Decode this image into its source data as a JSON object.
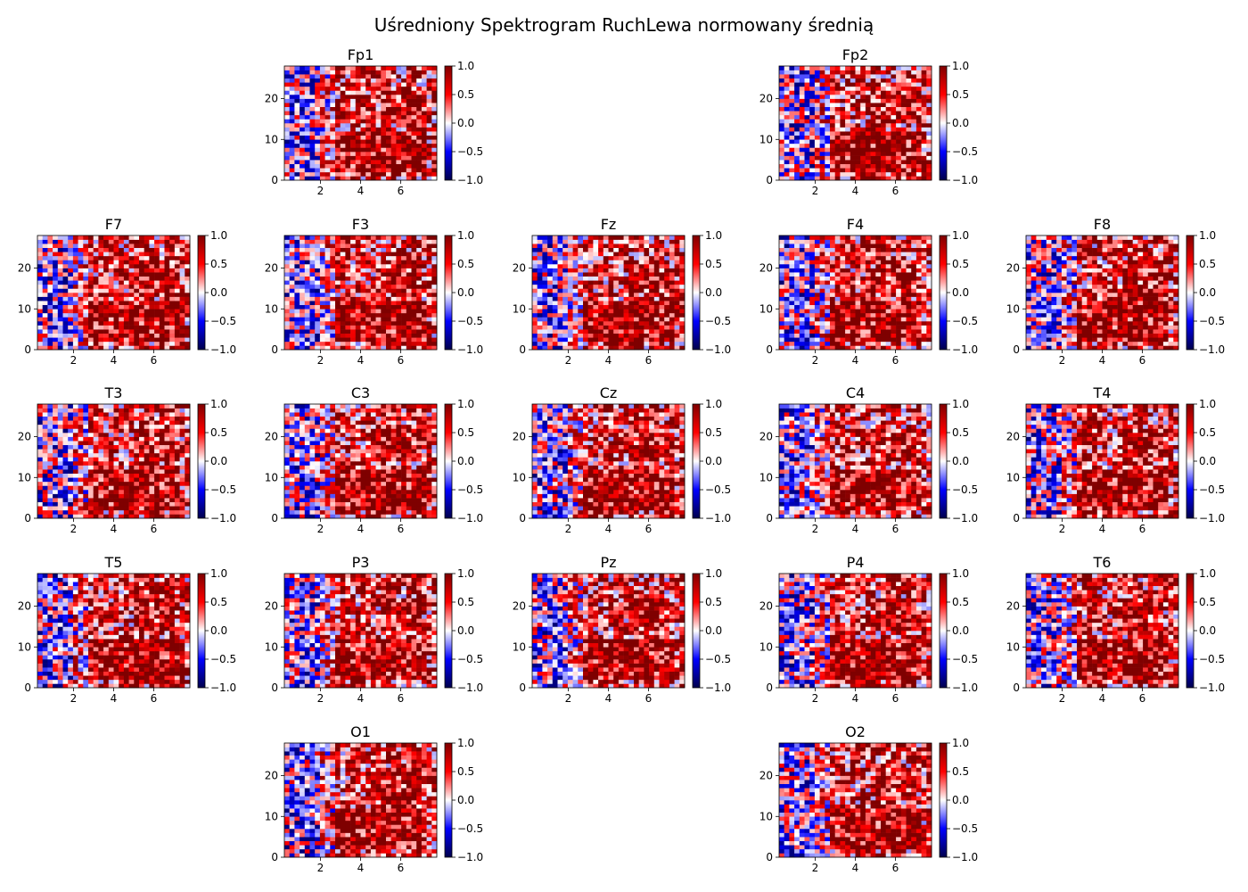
{
  "figure": {
    "title": "Uśredniony Spektrogram RuchLewa normowany średnią"
  },
  "colors": {
    "cmap": "seismic",
    "low": "#00004c",
    "mid": "#ffffff",
    "high": "#7f0000"
  },
  "chart_data": {
    "type": "heatmap",
    "title": "Uśredniony Spektrogram RuchLewa normowany średnią",
    "x_ticks": [
      2,
      4,
      6
    ],
    "y_ticks": [
      0,
      10,
      20
    ],
    "xlim": [
      0.2,
      7.8
    ],
    "ylim": [
      0,
      28
    ],
    "color_range": [
      -1.0,
      1.0
    ],
    "colorbar_ticks": [
      "1.0",
      "0.5",
      "0.0",
      "−0.5",
      "−1.0"
    ],
    "panels": [
      {
        "name": "Fp1",
        "row": 0,
        "col": 1
      },
      {
        "name": "Fp2",
        "row": 0,
        "col": 3
      },
      {
        "name": "F7",
        "row": 1,
        "col": 0
      },
      {
        "name": "F3",
        "row": 1,
        "col": 1
      },
      {
        "name": "Fz",
        "row": 1,
        "col": 2
      },
      {
        "name": "F4",
        "row": 1,
        "col": 3
      },
      {
        "name": "F8",
        "row": 1,
        "col": 4
      },
      {
        "name": "T3",
        "row": 2,
        "col": 0
      },
      {
        "name": "C3",
        "row": 2,
        "col": 1
      },
      {
        "name": "Cz",
        "row": 2,
        "col": 2
      },
      {
        "name": "C4",
        "row": 2,
        "col": 3
      },
      {
        "name": "T4",
        "row": 2,
        "col": 4
      },
      {
        "name": "T5",
        "row": 3,
        "col": 0
      },
      {
        "name": "P3",
        "row": 3,
        "col": 1
      },
      {
        "name": "Pz",
        "row": 3,
        "col": 2
      },
      {
        "name": "P4",
        "row": 3,
        "col": 3
      },
      {
        "name": "T6",
        "row": 3,
        "col": 4
      },
      {
        "name": "O1",
        "row": 4,
        "col": 1
      },
      {
        "name": "O2",
        "row": 4,
        "col": 3
      }
    ]
  }
}
